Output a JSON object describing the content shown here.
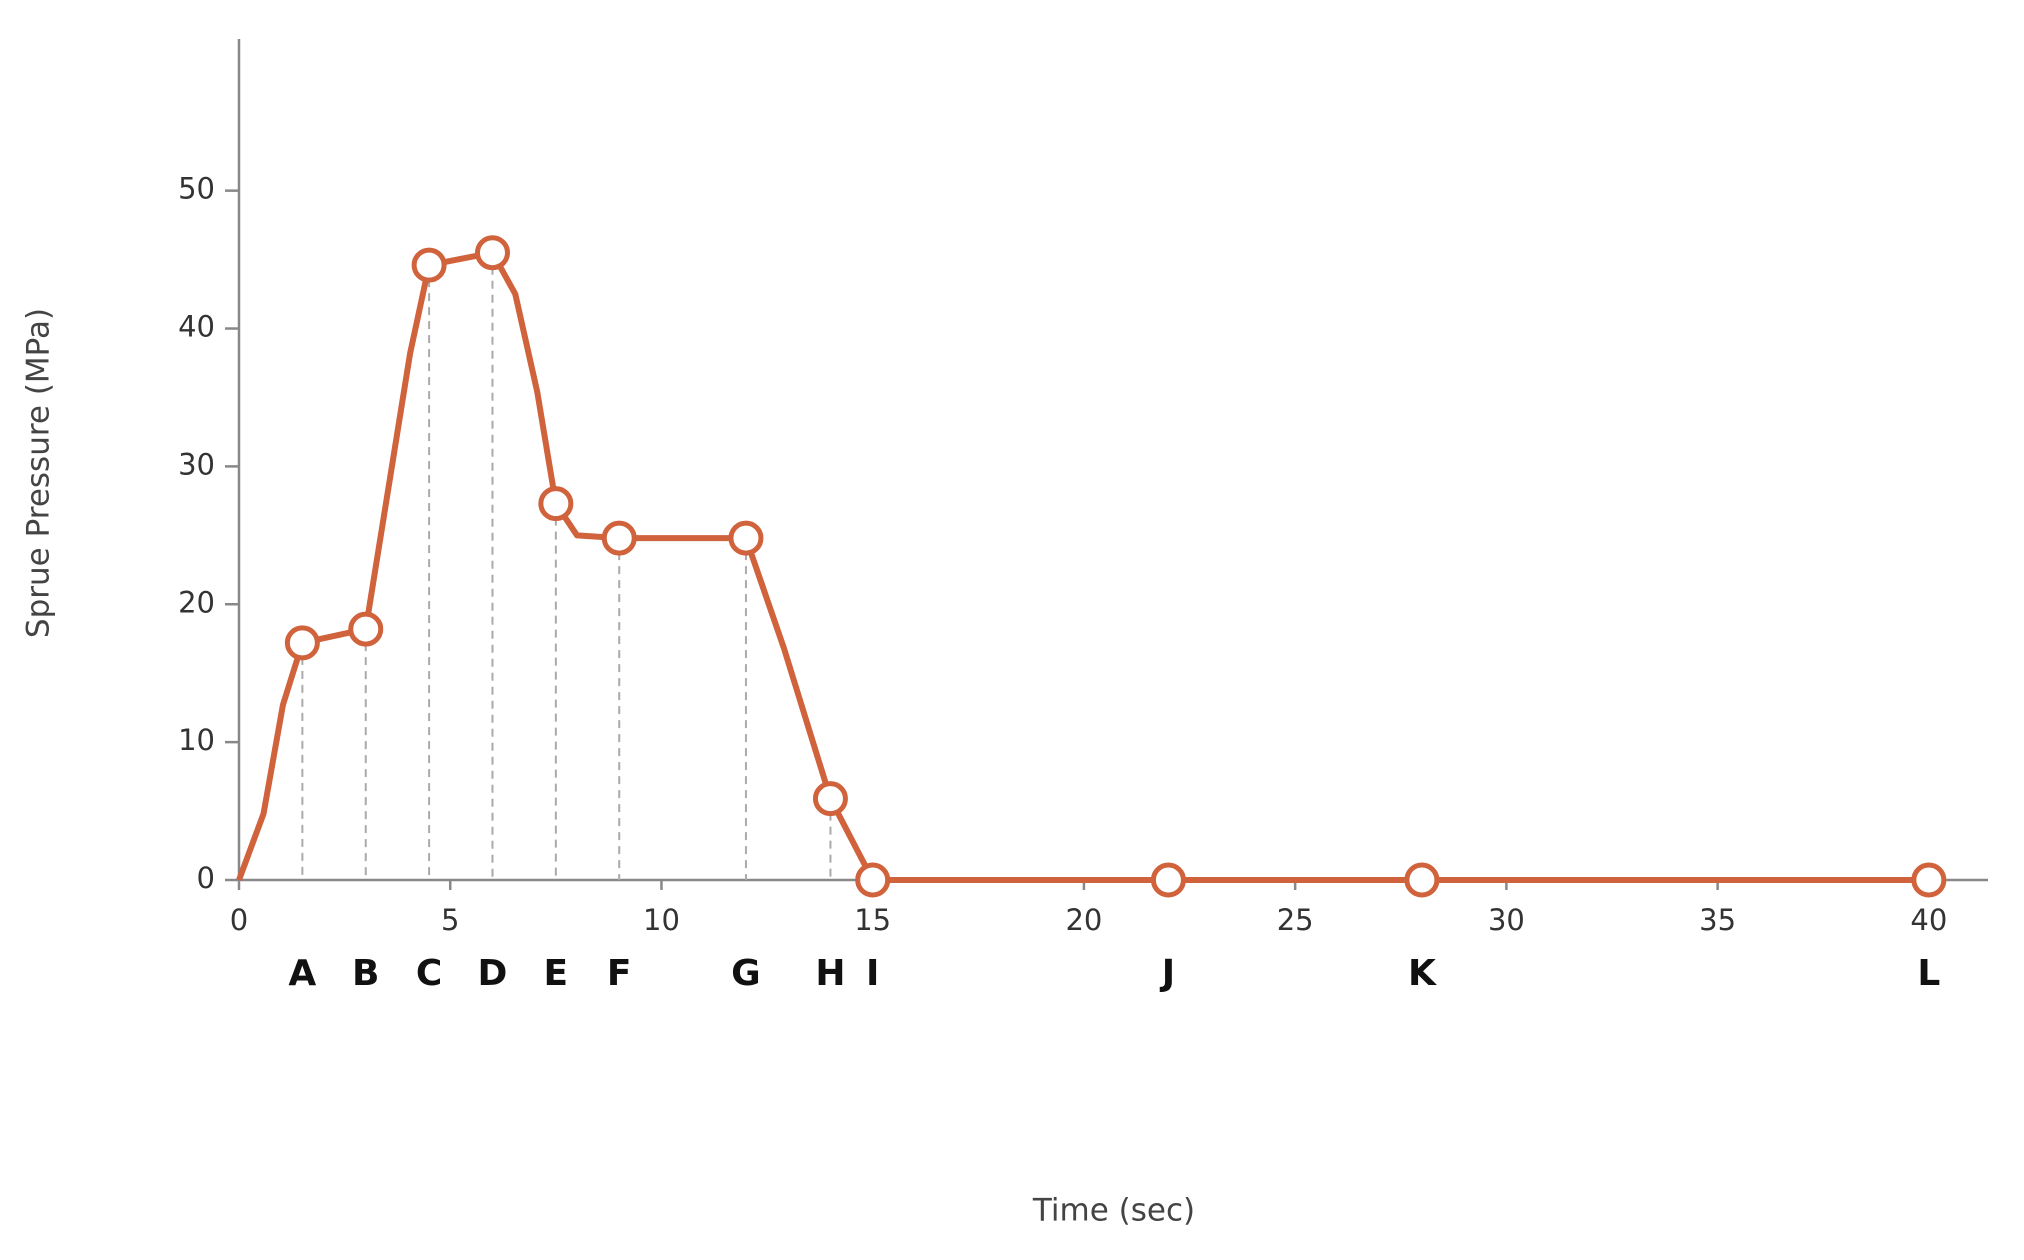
{
  "chart_data": {
    "type": "line",
    "x_label": "Time (sec)",
    "y_label": "Sprue Pressure (MPa)",
    "x": [
      0,
      0.58,
      1.04,
      1.5,
      3,
      4.05,
      4.5,
      6,
      6.54,
      7.06,
      7.5,
      8,
      9,
      12,
      12.9,
      14,
      15,
      22,
      28,
      40
    ],
    "series": [
      {
        "color": "#d0623c",
        "values": [
          0,
          4.8,
          12.7,
          17.2,
          18.2,
          38.2,
          44.6,
          45.5,
          42.5,
          35.4,
          27.3,
          25,
          24.8,
          24.8,
          16.8,
          5.9,
          0,
          0,
          0,
          0
        ]
      }
    ],
    "points": {
      "labels": [
        "A",
        "B",
        "C",
        "D",
        "E",
        "F",
        "G",
        "H",
        "I",
        "J",
        "K",
        "L"
      ],
      "x": [
        1.5,
        3,
        4.5,
        6,
        7.5,
        9,
        12,
        14,
        15,
        22,
        28,
        40
      ],
      "values": [
        17.2,
        18.2,
        44.6,
        45.5,
        27.3,
        24.8,
        24.8,
        5.9,
        0,
        0,
        0,
        0
      ]
    },
    "xlim": [
      0,
      41.4
    ],
    "ylim": [
      0,
      61
    ],
    "xticks": [
      0,
      5,
      10,
      15,
      20,
      25,
      30,
      35,
      40
    ],
    "yticks": [
      0,
      10,
      20,
      30,
      40,
      50
    ]
  }
}
